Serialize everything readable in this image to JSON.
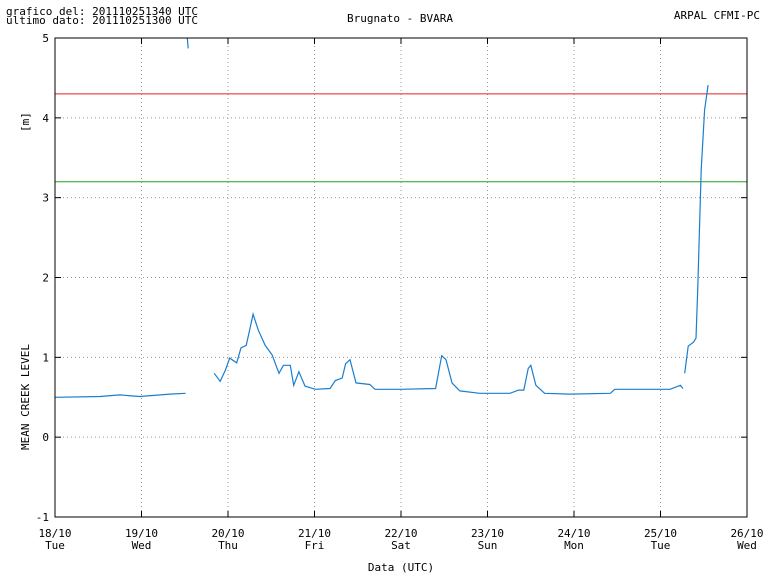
{
  "chart_data": {
    "type": "line",
    "header_left": [
      "grafico del: 201110251340 UTC",
      "ultimo dato: 201110251300 UTC"
    ],
    "title": "Brugnato - BVARA",
    "header_right": "ARPAL CFMI-PC",
    "ylabel": "MEAN CREEK LEVEL",
    "yunit": "[m]",
    "xlabel": "Data (UTC)",
    "xlim": [
      18,
      26
    ],
    "xticks": [
      {
        "value": 18,
        "label": "18/10"
      },
      {
        "value": 19,
        "label": "19/10"
      },
      {
        "value": 20,
        "label": "20/10"
      },
      {
        "value": 21,
        "label": "21/10"
      },
      {
        "value": 22,
        "label": "22/10"
      },
      {
        "value": 23,
        "label": "23/10"
      },
      {
        "value": 24,
        "label": "24/10"
      },
      {
        "value": 25,
        "label": "25/10"
      },
      {
        "value": 26,
        "label": "26/10"
      }
    ],
    "xtick_days": [
      "Tue",
      "Wed",
      "Thu",
      "Fri",
      "Sat",
      "Sun",
      "Mon",
      "Tue",
      "Wed"
    ],
    "ylim": [
      -1,
      5
    ],
    "yticks": [
      -1,
      0,
      1,
      2,
      3,
      4,
      5
    ],
    "grid": true,
    "thresholds": [
      {
        "value": 4.3,
        "color": "#e02020"
      },
      {
        "value": 3.2,
        "color": "#20a020"
      }
    ],
    "series": [
      {
        "color": "#1a7ecf",
        "x": [
          18.0,
          18.52,
          18.75,
          18.98,
          19.33,
          19.51,
          19.52,
          19.53,
          19.54,
          19.6,
          19.84,
          19.91,
          19.97,
          20.02,
          20.1,
          20.15,
          20.21,
          20.25,
          20.29,
          20.35,
          20.43,
          20.51,
          20.59,
          20.64,
          20.72,
          20.76,
          20.82,
          20.89,
          21.01,
          21.18,
          21.24,
          21.32,
          21.36,
          21.41,
          21.48,
          21.64,
          21.7,
          21.99,
          22.4,
          22.47,
          22.52,
          22.59,
          22.68,
          22.91,
          23.26,
          23.36,
          23.42,
          23.47,
          23.5,
          23.56,
          23.66,
          23.95,
          24.42,
          24.47,
          24.76,
          25.11,
          25.23,
          25.26,
          25.27,
          25.28,
          25.32,
          25.38,
          25.41,
          25.43,
          25.47,
          25.51,
          25.55
        ],
        "values": [
          0.5,
          0.51,
          0.53,
          0.51,
          0.54,
          0.55,
          null,
          5.0,
          4.87,
          null,
          0.8,
          0.7,
          0.84,
          0.99,
          0.93,
          1.12,
          1.15,
          1.34,
          1.54,
          1.34,
          1.15,
          1.03,
          0.8,
          0.9,
          0.9,
          0.65,
          0.82,
          0.64,
          0.6,
          0.61,
          0.71,
          0.74,
          0.92,
          0.97,
          0.68,
          0.66,
          0.6,
          0.6,
          0.61,
          1.02,
          0.97,
          0.68,
          0.58,
          0.55,
          0.55,
          0.59,
          0.59,
          0.86,
          0.9,
          0.65,
          0.55,
          0.54,
          0.55,
          0.6,
          0.6,
          0.6,
          0.65,
          0.61,
          null,
          0.8,
          1.14,
          1.19,
          1.24,
          1.84,
          3.35,
          4.1,
          4.41
        ]
      }
    ]
  }
}
